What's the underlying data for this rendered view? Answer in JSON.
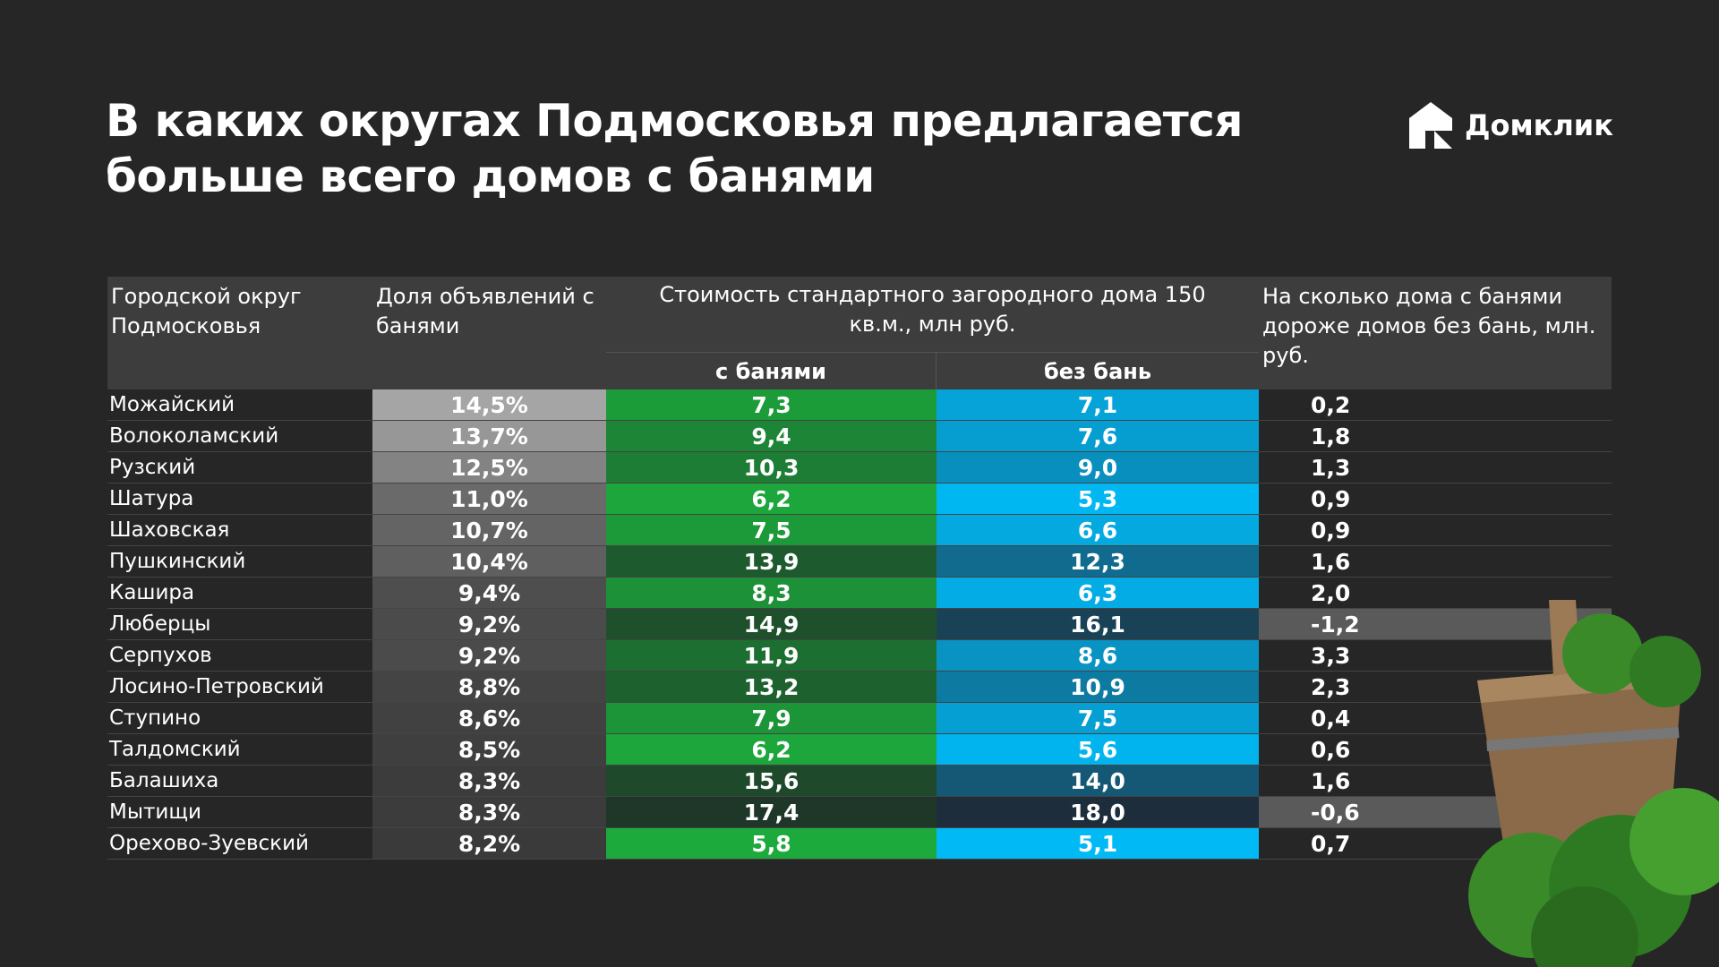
{
  "header": {
    "title_line1": "В каких округах Подмосковья предлагается",
    "title_line2": "больше всего домов с банями",
    "logo": "Домклик"
  },
  "table": {
    "columns": [
      "Городской округ Подмосковья",
      "Доля объявлений с банями",
      "Стоимость стандартного загородного дома 150 кв.м., млн руб.",
      "На сколько дома с банями дороже домов без бань, млн. руб."
    ],
    "subcolumns": [
      "с банями",
      "без бань"
    ],
    "rows": [
      [
        "Можайский",
        "14,5%",
        "7,3",
        "7,1",
        "0,2"
      ],
      [
        "Волоколамский",
        "13,7%",
        "9,4",
        "7,6",
        "1,8"
      ],
      [
        "Рузский",
        "12,5%",
        "10,3",
        "9,0",
        "1,3"
      ],
      [
        "Шатура",
        "11,0%",
        "6,2",
        "5,3",
        "0,9"
      ],
      [
        "Шаховская",
        "10,7%",
        "7,5",
        "6,6",
        "0,9"
      ],
      [
        "Пушкинский",
        "10,4%",
        "13,9",
        "12,3",
        "1,6"
      ],
      [
        "Кашира",
        "9,4%",
        "8,3",
        "6,3",
        "2,0"
      ],
      [
        "Люберцы",
        "9,2%",
        "14,9",
        "16,1",
        "-1,2"
      ],
      [
        "Серпухов",
        "9,2%",
        "11,9",
        "8,6",
        "3,3"
      ],
      [
        "Лосино-Петровский",
        "8,8%",
        "13,2",
        "10,9",
        "2,3"
      ],
      [
        "Ступино",
        "8,6%",
        "7,9",
        "7,5",
        "0,4"
      ],
      [
        "Талдомский",
        "8,5%",
        "6,2",
        "5,6",
        "0,6"
      ],
      [
        "Балашиха",
        "8,3%",
        "15,6",
        "14,0",
        "1,6"
      ],
      [
        "Мытищи",
        "8,3%",
        "17,4",
        "18,0",
        "-0,6"
      ],
      [
        "Орехово-Зуевский",
        "8,2%",
        "5,8",
        "5,1",
        "0,7"
      ]
    ]
  }
}
